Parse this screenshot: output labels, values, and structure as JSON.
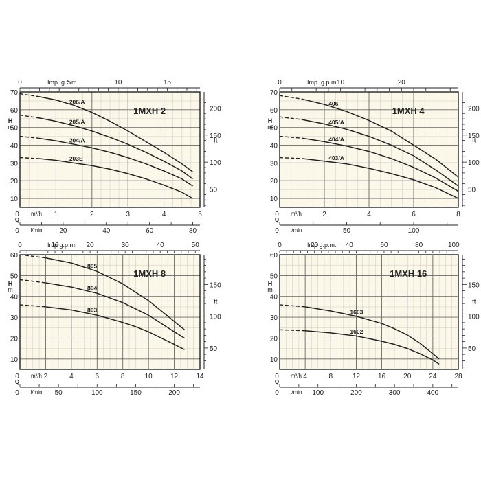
{
  "chart_data": [
    {
      "type": "line",
      "title": "1MXH 2",
      "y_unit": "H\nm",
      "yright_unit": "ft",
      "flow_unit": "m³/h",
      "q_label": "Q",
      "lmin_unit": "l/min",
      "imp_unit": "Imp. g.p.m.",
      "xlim": [
        0,
        5
      ],
      "ylim": [
        5,
        70
      ],
      "x_ticks": [
        0,
        1,
        2,
        3,
        4,
        5
      ],
      "y_ticks": [
        10,
        20,
        30,
        40,
        50,
        60,
        70
      ],
      "yright_ticks": [
        50,
        100,
        150,
        200
      ],
      "lmin_ticks": [
        0,
        20,
        40,
        60,
        80
      ],
      "imp_ticks": [
        0,
        5,
        10,
        15
      ],
      "series": [
        {
          "name": "206/A",
          "x": [
            0,
            0.5,
            1.0,
            1.5,
            2.0,
            2.5,
            3.0,
            3.5,
            4.0,
            4.5,
            4.8
          ],
          "y": [
            69,
            67.5,
            65.5,
            62.5,
            58.5,
            53.5,
            48,
            42,
            36,
            29.5,
            25
          ]
        },
        {
          "name": "205/A",
          "x": [
            0,
            0.5,
            1.0,
            1.5,
            2.0,
            2.5,
            3.0,
            3.5,
            4.0,
            4.5,
            4.8
          ],
          "y": [
            57,
            55.5,
            53.5,
            51,
            48,
            44.5,
            40.5,
            36,
            31,
            25.5,
            21
          ]
        },
        {
          "name": "204/A",
          "x": [
            0,
            0.5,
            1.0,
            1.5,
            2.0,
            2.5,
            3.0,
            3.5,
            4.0,
            4.5,
            4.8
          ],
          "y": [
            45,
            44,
            42.5,
            40.5,
            38.5,
            36,
            33,
            29.5,
            25.5,
            21,
            17
          ]
        },
        {
          "name": "203E",
          "x": [
            0,
            0.5,
            1.0,
            1.5,
            2.0,
            2.5,
            3.0,
            3.5,
            4.0,
            4.5,
            4.8
          ],
          "y": [
            33,
            32.5,
            31.5,
            30,
            28.5,
            26.5,
            24,
            21,
            17.5,
            13.5,
            10
          ]
        }
      ]
    },
    {
      "type": "line",
      "title": "1MXH 4",
      "y_unit": "H\nm",
      "yright_unit": "ft",
      "flow_unit": "m³/h",
      "q_label": "Q",
      "lmin_unit": "l/min",
      "imp_unit": "Imp. g.p.m.",
      "xlim": [
        0,
        8
      ],
      "ylim": [
        5,
        70
      ],
      "x_ticks": [
        0,
        2,
        4,
        6,
        8
      ],
      "y_ticks": [
        10,
        20,
        30,
        40,
        50,
        60,
        70
      ],
      "yright_ticks": [
        50,
        100,
        150,
        200
      ],
      "lmin_ticks": [
        0,
        50,
        100
      ],
      "imp_ticks": [
        0,
        10,
        20
      ],
      "series": [
        {
          "name": "406",
          "x": [
            0,
            1,
            2,
            3,
            4,
            5,
            6,
            7,
            8
          ],
          "y": [
            68,
            66,
            63,
            59,
            54,
            48,
            40,
            32,
            22
          ]
        },
        {
          "name": "405/A",
          "x": [
            0,
            1,
            2,
            3,
            4,
            5,
            6,
            7,
            8
          ],
          "y": [
            56,
            54.5,
            52,
            49,
            45,
            40,
            34,
            26,
            17
          ]
        },
        {
          "name": "404/A",
          "x": [
            0,
            1,
            2,
            3,
            4,
            5,
            6,
            7,
            8
          ],
          "y": [
            45,
            44,
            42,
            39.5,
            36.5,
            32.5,
            27.5,
            21.5,
            14
          ]
        },
        {
          "name": "403/A",
          "x": [
            0,
            1,
            2,
            3,
            4,
            5,
            6,
            7,
            8
          ],
          "y": [
            33,
            32.5,
            31,
            29.5,
            27,
            24,
            20.5,
            16,
            10
          ]
        }
      ]
    },
    {
      "type": "line",
      "title": "1MXH 8",
      "y_unit": "H\nm",
      "yright_unit": "ft",
      "flow_unit": "m³/h",
      "q_label": "Q",
      "lmin_unit": "l/min",
      "imp_unit": "Imp g.p.m.",
      "xlim": [
        0,
        14
      ],
      "ylim": [
        5,
        60
      ],
      "x_ticks": [
        0,
        2,
        4,
        6,
        8,
        10,
        12,
        14
      ],
      "y_ticks": [
        10,
        20,
        30,
        40,
        50,
        60
      ],
      "yright_ticks": [
        50,
        100,
        150,
        200
      ],
      "lmin_ticks": [
        0,
        50,
        100,
        150,
        200
      ],
      "imp_ticks": [
        0,
        10,
        20,
        30,
        40,
        50
      ],
      "series": [
        {
          "name": "805",
          "x": [
            0,
            2,
            4,
            6,
            8,
            9,
            10,
            11,
            12,
            12.8
          ],
          "y": [
            60,
            58.5,
            56,
            52,
            46,
            42,
            38,
            33,
            28,
            24
          ]
        },
        {
          "name": "804",
          "x": [
            0,
            2,
            4,
            6,
            8,
            9,
            10,
            11,
            12,
            12.8
          ],
          "y": [
            48,
            46.5,
            44.5,
            41.5,
            37,
            34,
            31,
            27,
            23,
            20
          ]
        },
        {
          "name": "803",
          "x": [
            0,
            2,
            4,
            6,
            8,
            9,
            10,
            11,
            12,
            12.8
          ],
          "y": [
            36,
            35,
            33.5,
            31,
            27.5,
            25.5,
            23,
            20,
            17,
            14.5
          ]
        }
      ]
    },
    {
      "type": "line",
      "title": "1MXH 16",
      "y_unit": "H\nm",
      "yright_unit": "ft",
      "flow_unit": "m³/h",
      "q_label": "Q",
      "lmin_unit": "l/min",
      "imp_unit": "Imp g.p.m.",
      "xlim": [
        0,
        28
      ],
      "ylim": [
        5,
        60
      ],
      "x_ticks": [
        0,
        4,
        8,
        12,
        16,
        20,
        24,
        28
      ],
      "y_ticks": [
        10,
        20,
        30,
        40,
        50,
        60
      ],
      "yright_ticks": [
        50,
        100,
        150,
        200
      ],
      "lmin_ticks": [
        0,
        100,
        200,
        300,
        400
      ],
      "imp_ticks": [
        0,
        20,
        40,
        60,
        80,
        100
      ],
      "series": [
        {
          "name": "1603",
          "x": [
            0,
            4,
            8,
            12,
            16,
            18,
            20,
            22,
            24,
            25
          ],
          "y": [
            36,
            35,
            33,
            30.5,
            27,
            24.5,
            21.5,
            17.5,
            12.5,
            10
          ]
        },
        {
          "name": "1602",
          "x": [
            0,
            4,
            8,
            12,
            16,
            18,
            20,
            22,
            24,
            25
          ],
          "y": [
            24,
            23.5,
            22.5,
            21,
            18.5,
            17,
            15,
            12.5,
            9.5,
            7.5
          ]
        }
      ]
    }
  ]
}
